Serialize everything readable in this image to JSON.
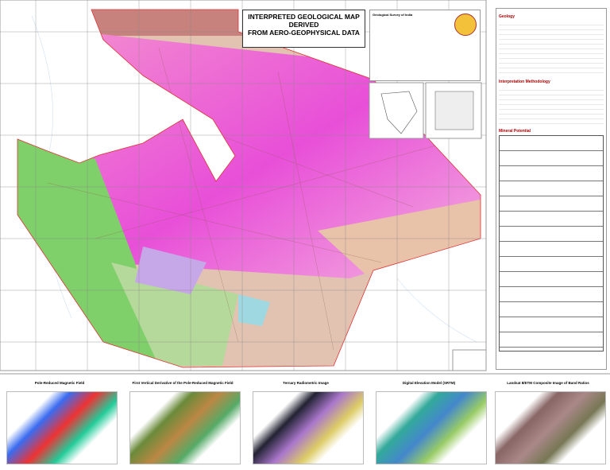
{
  "header": {
    "title_lines": [
      "INTERPRETED GEOLOGICAL MAP DERIVED",
      "FROM AERO-GEOPHYSICAL DATA"
    ]
  },
  "organization": {
    "name": "Geological Survey of India"
  },
  "sidebar": {
    "sections": [
      "Geology",
      "Interpretation Methodology",
      "Mineral Potential"
    ]
  },
  "thumbnails": [
    "Pole-Reduced Magnetic Field",
    "First Vertical Derivative of the Pole-Reduced Magnetic Field",
    "Ternary Radiometric Image",
    "Digital Elevation Model (SRTM)",
    "Landsat 8/ETM Composite Image of Band Ratios"
  ]
}
